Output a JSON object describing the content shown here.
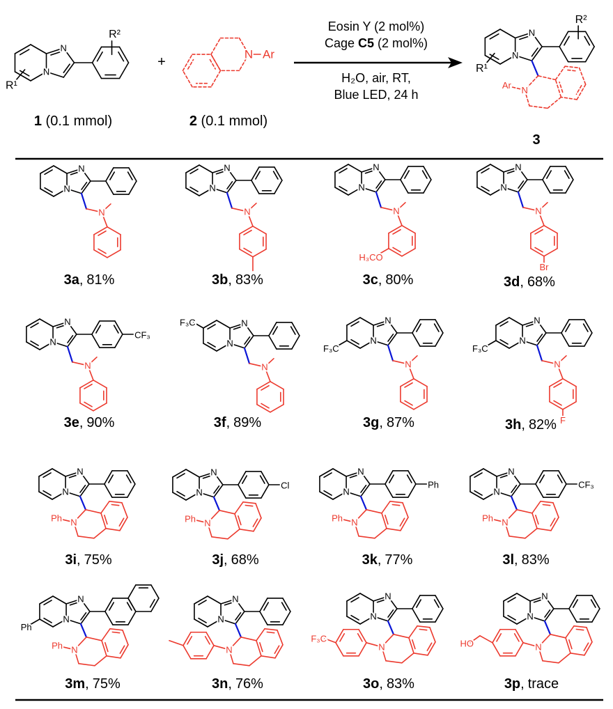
{
  "colors": {
    "core": "#000000",
    "amine": "#ec3a2e",
    "new_bond": "#0b16d6"
  },
  "atoms": {
    "N": "N",
    "Ph": "Ph",
    "Ar": "Ar"
  },
  "scheme": {
    "reactant1": {
      "number": "1",
      "amount": "(0.1 mmol)",
      "r1": "R¹",
      "r2": "R²"
    },
    "plus": "+",
    "reactant2": {
      "number": "2",
      "amount": "(0.1 mmol)"
    },
    "conditions_above": {
      "line1": "Eosin Y (2 mol%)",
      "line2_pre": "Cage ",
      "line2_bold": "C5",
      "line2_post": " (2 mol%)"
    },
    "conditions_below": {
      "line1": "H₂O, air, RT,",
      "line2": "Blue LED, 24 h"
    },
    "product": {
      "number": "3",
      "r1": "R¹",
      "r2": "R²"
    }
  },
  "table": {
    "separator": ","
  },
  "compounds": [
    {
      "id": "3a",
      "yield": "81%"
    },
    {
      "id": "3b",
      "yield": "83%"
    },
    {
      "id": "3c",
      "yield": "80%",
      "amine_sub": "H₃CO"
    },
    {
      "id": "3d",
      "yield": "68%",
      "amine_sub": "Br"
    },
    {
      "id": "3e",
      "yield": "90%",
      "aryl_sub": "CF₃"
    },
    {
      "id": "3f",
      "yield": "89%",
      "py_sub": "F₃C"
    },
    {
      "id": "3g",
      "yield": "87%",
      "py_sub": "F₃C"
    },
    {
      "id": "3h",
      "yield": "82%",
      "py_sub": "F₃C",
      "amine_sub": "F"
    },
    {
      "id": "3i",
      "yield": "75%"
    },
    {
      "id": "3j",
      "yield": "68%",
      "aryl_sub": "Cl"
    },
    {
      "id": "3k",
      "yield": "77%",
      "aryl_sub": "Ph"
    },
    {
      "id": "3l",
      "yield": "83%",
      "aryl_sub": "CF₃"
    },
    {
      "id": "3m",
      "yield": "75%",
      "py_sub": "Ph"
    },
    {
      "id": "3n",
      "yield": "76%"
    },
    {
      "id": "3o",
      "yield": "83%",
      "n_sub": "F₃C"
    },
    {
      "id": "3p",
      "yield": "trace",
      "n_sub": "HO"
    }
  ]
}
